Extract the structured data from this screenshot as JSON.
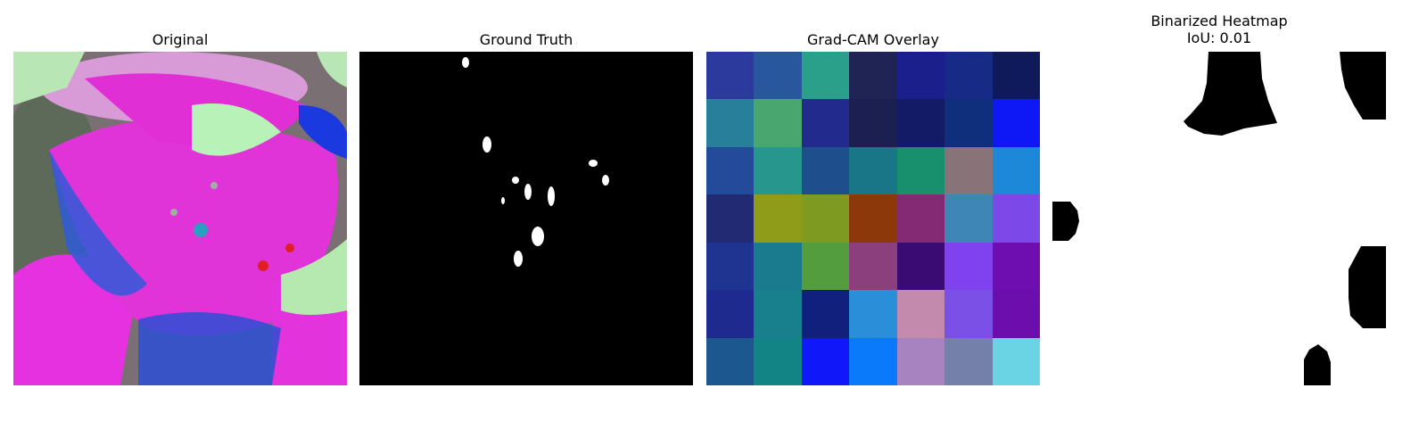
{
  "panels": {
    "original": {
      "title": "Original"
    },
    "ground_truth": {
      "title": "Ground Truth"
    },
    "gradcam": {
      "title": "Grad-CAM Overlay",
      "cells": [
        [
          "#2b3a9c",
          "#28579d",
          "#2aa08b",
          "#1f2454",
          "#1b1f8c",
          "#172a86",
          "#0f1a5a"
        ],
        [
          "#277f9a",
          "#48a66e",
          "#222a8e",
          "#1b2050",
          "#141b66",
          "#0f2f7c",
          "#0e18f5"
        ],
        [
          "#244b9a",
          "#27978e",
          "#1e4f8c",
          "#187687",
          "#18906e",
          "#877378",
          "#1d88d8"
        ],
        [
          "#222a72",
          "#8f9c19",
          "#7f9a20",
          "#8c380b",
          "#842a74",
          "#3d86b6",
          "#7c48e8"
        ],
        [
          "#1f3391",
          "#1a7b8e",
          "#539d3f",
          "#8b3f7c",
          "#3a0b72",
          "#7f42ee",
          "#6e0eb0"
        ],
        [
          "#1f2a8e",
          "#18808c",
          "#12207d",
          "#2a8ed8",
          "#c38aae",
          "#7b50e6",
          "#6b0ead"
        ],
        [
          "#1c578e",
          "#138485",
          "#1018fa",
          "#0a79fa",
          "#a784bf",
          "#7480aa",
          "#6ad4e5"
        ]
      ]
    },
    "binarized": {
      "title_line1": "Binarized Heatmap",
      "title_line2": "IoU: 0.01"
    }
  }
}
